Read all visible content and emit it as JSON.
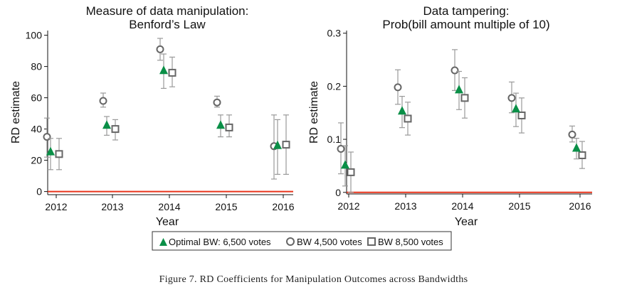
{
  "caption": "Figure 7. RD Coefficients for Manipulation Outcomes across Bandwidths",
  "colors": {
    "optimal": "#0a8f47",
    "bw_small": "#666666",
    "bw_large": "#666666",
    "zero_line": "#e8341c",
    "ci": "#9a9a9a"
  },
  "legend": {
    "placement": "bottom-center",
    "items": [
      {
        "label": "Optimal BW: 6,500 votes",
        "marker": "triangle"
      },
      {
        "label": "BW 4,500 votes",
        "marker": "circle"
      },
      {
        "label": "BW 8,500 votes",
        "marker": "square"
      }
    ]
  },
  "chart_data": [
    {
      "type": "scatter",
      "title": "Measure of data manipulation:",
      "subtitle": "Benford’s Law",
      "xlabel": "Year",
      "ylabel": "RD estimate",
      "categories": [
        "2012",
        "2013",
        "2014",
        "2015",
        "2016"
      ],
      "ylim": [
        -2,
        103
      ],
      "yticks": [
        0,
        20,
        40,
        60,
        80,
        100
      ],
      "ytick_labels": [
        "0",
        "20",
        "40",
        "60",
        "80",
        "100"
      ],
      "zero_line": 0,
      "grid": false,
      "series": [
        {
          "name": "Optimal BW: 6,500 votes",
          "marker": "triangle",
          "values": [
            25,
            42,
            77,
            42,
            29
          ],
          "ci_low": [
            14,
            36,
            66,
            35,
            11
          ],
          "ci_high": [
            34,
            48,
            88,
            49,
            46
          ]
        },
        {
          "name": "BW 4,500 votes",
          "marker": "circle",
          "values": [
            35,
            58,
            91,
            57,
            29
          ],
          "ci_low": [
            22,
            54,
            84,
            54,
            8
          ],
          "ci_high": [
            47,
            63,
            98,
            61,
            49
          ]
        },
        {
          "name": "BW 8,500 votes",
          "marker": "square",
          "values": [
            24,
            40,
            76,
            41,
            30
          ],
          "ci_low": [
            14,
            33,
            67,
            35,
            11
          ],
          "ci_high": [
            34,
            46,
            86,
            49,
            49
          ]
        }
      ]
    },
    {
      "type": "scatter",
      "title": "Data tampering:",
      "subtitle": "Prob(bill amount multiple of 10)",
      "xlabel": "Year",
      "ylabel": "RD estimate",
      "categories": [
        "2012",
        "2013",
        "2014",
        "2015",
        "2016"
      ],
      "ylim": [
        -0.003,
        0.305
      ],
      "yticks": [
        0,
        0.1,
        0.2,
        0.3
      ],
      "ytick_labels": [
        "0",
        "0.1",
        "0.2",
        "0.3"
      ],
      "zero_line": 0,
      "grid": false,
      "series": [
        {
          "name": "Optimal BW: 6,500 votes",
          "marker": "triangle",
          "values": [
            0.05,
            0.152,
            0.192,
            0.156,
            0.082
          ],
          "ci_low": [
            0.012,
            0.122,
            0.156,
            0.124,
            0.063
          ],
          "ci_high": [
            0.088,
            0.181,
            0.228,
            0.187,
            0.102
          ]
        },
        {
          "name": "BW 4,500 votes",
          "marker": "circle",
          "values": [
            0.082,
            0.198,
            0.23,
            0.178,
            0.109
          ],
          "ci_low": [
            0.035,
            0.166,
            0.192,
            0.15,
            0.095
          ],
          "ci_high": [
            0.131,
            0.231,
            0.269,
            0.208,
            0.125
          ]
        },
        {
          "name": "BW 8,500 votes",
          "marker": "square",
          "values": [
            0.038,
            0.139,
            0.178,
            0.145,
            0.07
          ],
          "ci_low": [
            0.0,
            0.108,
            0.14,
            0.112,
            0.045
          ],
          "ci_high": [
            0.076,
            0.17,
            0.216,
            0.178,
            0.096
          ]
        }
      ]
    }
  ]
}
